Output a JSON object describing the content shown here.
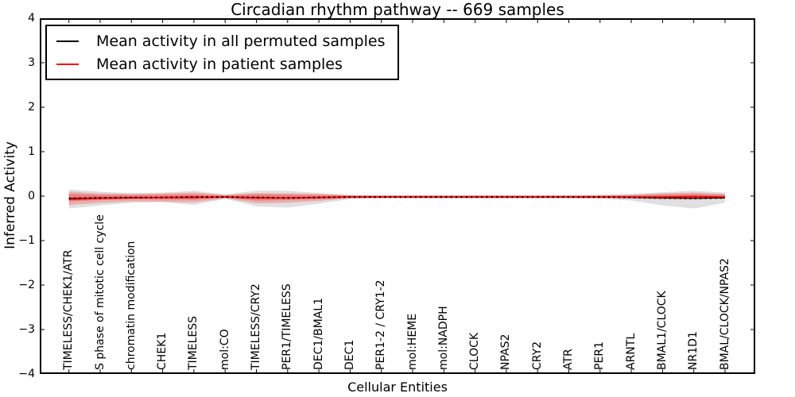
{
  "title": "Circadian rhythm pathway -- 669 samples",
  "axes": {
    "ylabel": "Inferred Activity",
    "xlabel": "Cellular Entities",
    "ytick_labels": [
      "4",
      "3",
      "2",
      "1",
      "0",
      "−1",
      "−2",
      "−3",
      "−4"
    ]
  },
  "legend": {
    "items": [
      {
        "label": "Mean activity in all permuted samples",
        "color": "#000000"
      },
      {
        "label": "Mean activity in patient samples",
        "color": "#ff0000"
      }
    ]
  },
  "chart_data": {
    "type": "line",
    "title": "Circadian rhythm pathway -- 669 samples",
    "xlabel": "Cellular Entities",
    "ylabel": "Inferred Activity",
    "ylim": [
      -4,
      4
    ],
    "grid": false,
    "legend_position": "upper left",
    "categories": [
      "TIMELESS/CHEK1/ATR",
      "S phase of mitotic cell cycle",
      "chromatin modification",
      "CHEK1",
      "TIMELESS",
      "mol:CO",
      "TIMELESS/CRY2",
      "PER1/TIMELESS",
      "DEC1/BMAL1",
      "DEC1",
      "PER1-2 / CRY1-2",
      "mol:HEME",
      "mol:NADPH",
      "CLOCK",
      "NPAS2",
      "CRY2",
      "ATR",
      "PER1",
      "ARNTL",
      "BMAL1/CLOCK",
      "NR1D1",
      "BMAL/CLOCK/NPAS2"
    ],
    "series": [
      {
        "name": "Mean activity in all permuted samples",
        "color": "#000000",
        "style": "solid-with-dot-markers",
        "values": [
          -0.05,
          -0.04,
          -0.03,
          -0.03,
          -0.02,
          -0.02,
          -0.03,
          -0.04,
          -0.03,
          -0.02,
          -0.02,
          -0.02,
          -0.02,
          -0.02,
          -0.02,
          -0.02,
          -0.02,
          -0.02,
          -0.03,
          -0.04,
          -0.05,
          -0.04
        ]
      },
      {
        "name": "Mean activity in patient samples",
        "color": "#ff0000",
        "style": "solid",
        "values": [
          -0.07,
          -0.05,
          -0.04,
          -0.03,
          -0.03,
          -0.02,
          -0.04,
          -0.04,
          -0.03,
          -0.02,
          -0.02,
          -0.02,
          -0.02,
          -0.02,
          -0.02,
          -0.02,
          -0.02,
          -0.02,
          -0.02,
          -0.02,
          -0.01,
          -0.02
        ]
      }
    ],
    "bands": [
      {
        "name": "permuted-samples-range",
        "color": "#9e9e9e",
        "opacity": 0.32,
        "upper": [
          0.15,
          0.1,
          0.07,
          0.08,
          0.12,
          0.04,
          0.12,
          0.12,
          0.07,
          0.03,
          0.02,
          0.02,
          0.02,
          0.02,
          0.02,
          0.02,
          0.02,
          0.03,
          0.05,
          0.09,
          0.12,
          0.08
        ],
        "lower": [
          -0.28,
          -0.21,
          -0.15,
          -0.13,
          -0.2,
          -0.06,
          -0.23,
          -0.26,
          -0.17,
          -0.07,
          -0.05,
          -0.05,
          -0.05,
          -0.05,
          -0.05,
          -0.05,
          -0.05,
          -0.06,
          -0.1,
          -0.21,
          -0.28,
          -0.15
        ]
      },
      {
        "name": "patient-samples-range-outer",
        "color": "#ff0000",
        "opacity": 0.22,
        "upper": [
          0.1,
          0.06,
          0.05,
          0.06,
          0.08,
          0.03,
          0.07,
          0.06,
          0.05,
          0.02,
          0.015,
          0.015,
          0.015,
          0.015,
          0.015,
          0.015,
          0.015,
          0.02,
          0.03,
          0.06,
          0.08,
          0.05
        ],
        "lower": [
          -0.2,
          -0.15,
          -0.12,
          -0.13,
          -0.14,
          -0.05,
          -0.16,
          -0.15,
          -0.11,
          -0.05,
          -0.045,
          -0.045,
          -0.045,
          -0.045,
          -0.045,
          -0.045,
          -0.045,
          -0.05,
          -0.06,
          -0.08,
          -0.08,
          -0.06
        ]
      },
      {
        "name": "patient-samples-range-inner",
        "color": "#ff0000",
        "opacity": 0.28,
        "upper": [
          0.05,
          0.03,
          0.025,
          0.03,
          0.04,
          0.015,
          0.04,
          0.035,
          0.025,
          0.012,
          0.008,
          0.008,
          0.008,
          0.008,
          0.008,
          0.008,
          0.008,
          0.01,
          0.02,
          0.035,
          0.045,
          0.03
        ],
        "lower": [
          -0.12,
          -0.09,
          -0.07,
          -0.08,
          -0.08,
          -0.035,
          -0.1,
          -0.09,
          -0.07,
          -0.035,
          -0.03,
          -0.03,
          -0.03,
          -0.03,
          -0.03,
          -0.03,
          -0.03,
          -0.035,
          -0.04,
          -0.05,
          -0.05,
          -0.04
        ]
      }
    ]
  }
}
